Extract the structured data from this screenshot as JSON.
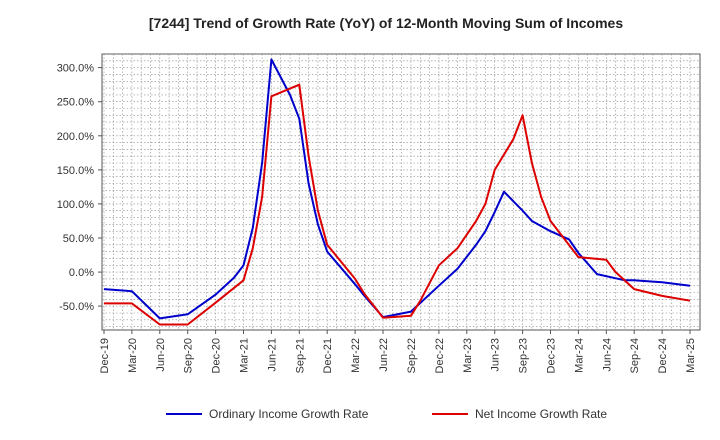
{
  "chart_data": {
    "type": "line",
    "title": "[7244]  Trend of Growth Rate (YoY) of 12-Month Moving Sum of Incomes",
    "xlabel": "",
    "ylabel": "",
    "ylim": [
      -85,
      320
    ],
    "y_ticks": [
      -50,
      0,
      50,
      100,
      150,
      200,
      250,
      300
    ],
    "y_tick_labels": [
      "-50.0%",
      "0.0%",
      "50.0%",
      "100.0%",
      "150.0%",
      "200.0%",
      "250.0%",
      "300.0%"
    ],
    "x_ticks": [
      "Dec-19",
      "Mar-20",
      "Jun-20",
      "Sep-20",
      "Dec-20",
      "Mar-21",
      "Jun-21",
      "Sep-21",
      "Dec-21",
      "Mar-22",
      "Jun-22",
      "Sep-22",
      "Dec-22",
      "Mar-23",
      "Jun-23",
      "Sep-23",
      "Dec-23",
      "Mar-24",
      "Jun-24",
      "Sep-24",
      "Dec-24",
      "Mar-25"
    ],
    "x_month_range": [
      0,
      63
    ],
    "grid": true,
    "legend_position": "bottom",
    "series": [
      {
        "name": "Ordinary Income Growth Rate",
        "color": "#0000cc",
        "points": [
          [
            0,
            -25
          ],
          [
            3,
            -28
          ],
          [
            6,
            -68
          ],
          [
            9,
            -62
          ],
          [
            12,
            -33
          ],
          [
            14,
            -8
          ],
          [
            15,
            10
          ],
          [
            16,
            65
          ],
          [
            17,
            160
          ],
          [
            18,
            312
          ],
          [
            20,
            260
          ],
          [
            21,
            225
          ],
          [
            22,
            130
          ],
          [
            23,
            70
          ],
          [
            24,
            30
          ],
          [
            27,
            -18
          ],
          [
            28,
            -35
          ],
          [
            30,
            -66
          ],
          [
            33,
            -58
          ],
          [
            36,
            -20
          ],
          [
            38,
            5
          ],
          [
            40,
            40
          ],
          [
            41,
            60
          ],
          [
            42,
            88
          ],
          [
            43,
            118
          ],
          [
            45,
            90
          ],
          [
            46,
            75
          ],
          [
            48,
            60
          ],
          [
            50,
            48
          ],
          [
            51,
            28
          ],
          [
            53,
            -3
          ],
          [
            56,
            -12
          ],
          [
            57,
            -12
          ],
          [
            60,
            -15
          ],
          [
            63,
            -20
          ]
        ]
      },
      {
        "name": "Net Income Growth Rate",
        "color": "#dd0000",
        "points": [
          [
            0,
            -46
          ],
          [
            3,
            -46
          ],
          [
            6,
            -77
          ],
          [
            9,
            -77
          ],
          [
            12,
            -45
          ],
          [
            15,
            -12
          ],
          [
            16,
            35
          ],
          [
            17,
            110
          ],
          [
            18,
            258
          ],
          [
            21,
            275
          ],
          [
            22,
            170
          ],
          [
            23,
            90
          ],
          [
            24,
            40
          ],
          [
            27,
            -10
          ],
          [
            28,
            -32
          ],
          [
            30,
            -67
          ],
          [
            33,
            -64
          ],
          [
            34,
            -42
          ],
          [
            36,
            10
          ],
          [
            38,
            35
          ],
          [
            40,
            75
          ],
          [
            41,
            100
          ],
          [
            42,
            150
          ],
          [
            44,
            195
          ],
          [
            45,
            230
          ],
          [
            46,
            160
          ],
          [
            47,
            110
          ],
          [
            48,
            75
          ],
          [
            51,
            22
          ],
          [
            54,
            18
          ],
          [
            55,
            0
          ],
          [
            57,
            -25
          ],
          [
            60,
            -35
          ],
          [
            63,
            -42
          ]
        ]
      }
    ]
  }
}
